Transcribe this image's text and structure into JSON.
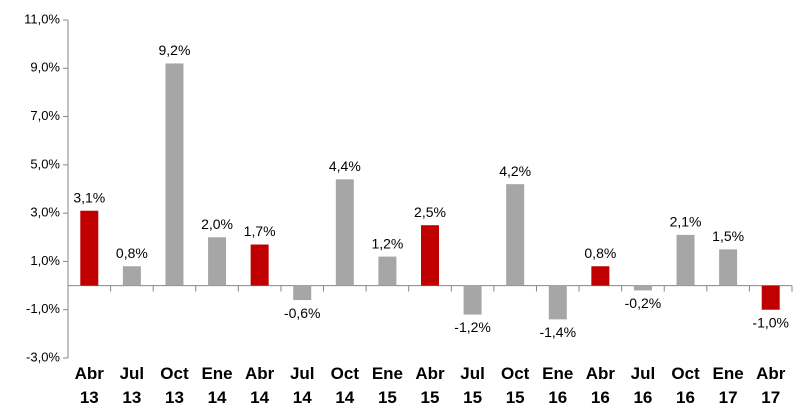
{
  "chart_data": {
    "type": "bar",
    "categories": [
      "Abr 13",
      "Jul 13",
      "Oct 13",
      "Ene 14",
      "Abr 14",
      "Jul 14",
      "Oct 14",
      "Ene 15",
      "Abr 15",
      "Jul 15",
      "Oct 15",
      "Ene 16",
      "Abr 16",
      "Jul 16",
      "Oct 16",
      "Ene 17",
      "Abr 17"
    ],
    "values": [
      3.1,
      0.8,
      9.2,
      2.0,
      1.7,
      -0.6,
      4.4,
      1.2,
      2.5,
      -1.2,
      4.2,
      -1.4,
      0.8,
      -0.2,
      2.1,
      1.5,
      -1.0
    ],
    "value_labels": [
      "3,1%",
      "0,8%",
      "9,2%",
      "2,0%",
      "1,7%",
      "-0,6%",
      "4,4%",
      "1,2%",
      "2,5%",
      "-1,2%",
      "4,2%",
      "-1,4%",
      "0,8%",
      "-0,2%",
      "2,1%",
      "1,5%",
      "-1,0%"
    ],
    "colors": [
      "#c00000",
      "#a6a6a6",
      "#a6a6a6",
      "#a6a6a6",
      "#c00000",
      "#a6a6a6",
      "#a6a6a6",
      "#a6a6a6",
      "#c00000",
      "#a6a6a6",
      "#a6a6a6",
      "#a6a6a6",
      "#c00000",
      "#a6a6a6",
      "#a6a6a6",
      "#a6a6a6",
      "#c00000"
    ],
    "ylim": [
      -3,
      11
    ],
    "yticks": [
      {
        "value": -3,
        "label": "-3,0%"
      },
      {
        "value": -1,
        "label": "-1,0%"
      },
      {
        "value": 1,
        "label": "1,0%"
      },
      {
        "value": 3,
        "label": "3,0%"
      },
      {
        "value": 5,
        "label": "5,0%"
      },
      {
        "value": 7,
        "label": "7,0%"
      },
      {
        "value": 9,
        "label": "9,0%"
      },
      {
        "value": 11,
        "label": "11,0%"
      }
    ],
    "grid": false
  }
}
